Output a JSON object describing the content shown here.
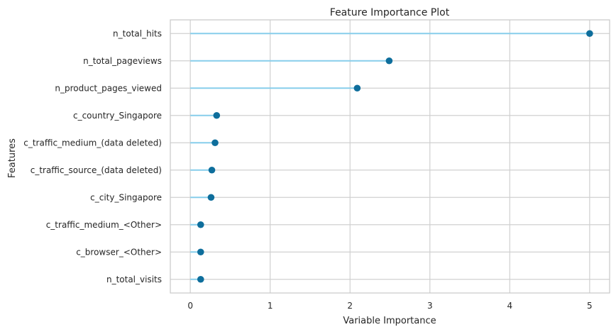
{
  "chart_data": {
    "type": "lollipop",
    "title": "Feature Importance Plot",
    "xlabel": "Variable Importance",
    "ylabel": "Features",
    "xlim": [
      -0.25,
      5.25
    ],
    "xticks": [
      0,
      1,
      2,
      3,
      4,
      5
    ],
    "grid": true,
    "categories": [
      "n_total_hits",
      "n_total_pageviews",
      "n_product_pages_viewed",
      "c_country_Singapore",
      "c_traffic_medium_(data deleted)",
      "c_traffic_source_(data deleted)",
      "c_city_Singapore",
      "c_traffic_medium_<Other>",
      "c_browser_<Other>",
      "n_total_visits"
    ],
    "values": [
      5.0,
      2.49,
      2.09,
      0.33,
      0.31,
      0.27,
      0.26,
      0.13,
      0.13,
      0.13
    ],
    "colors": {
      "stem": "#87ceeb",
      "marker": "#0e6e9c",
      "grid": "#d0d0d0",
      "frame": "#c8c8c8"
    }
  }
}
